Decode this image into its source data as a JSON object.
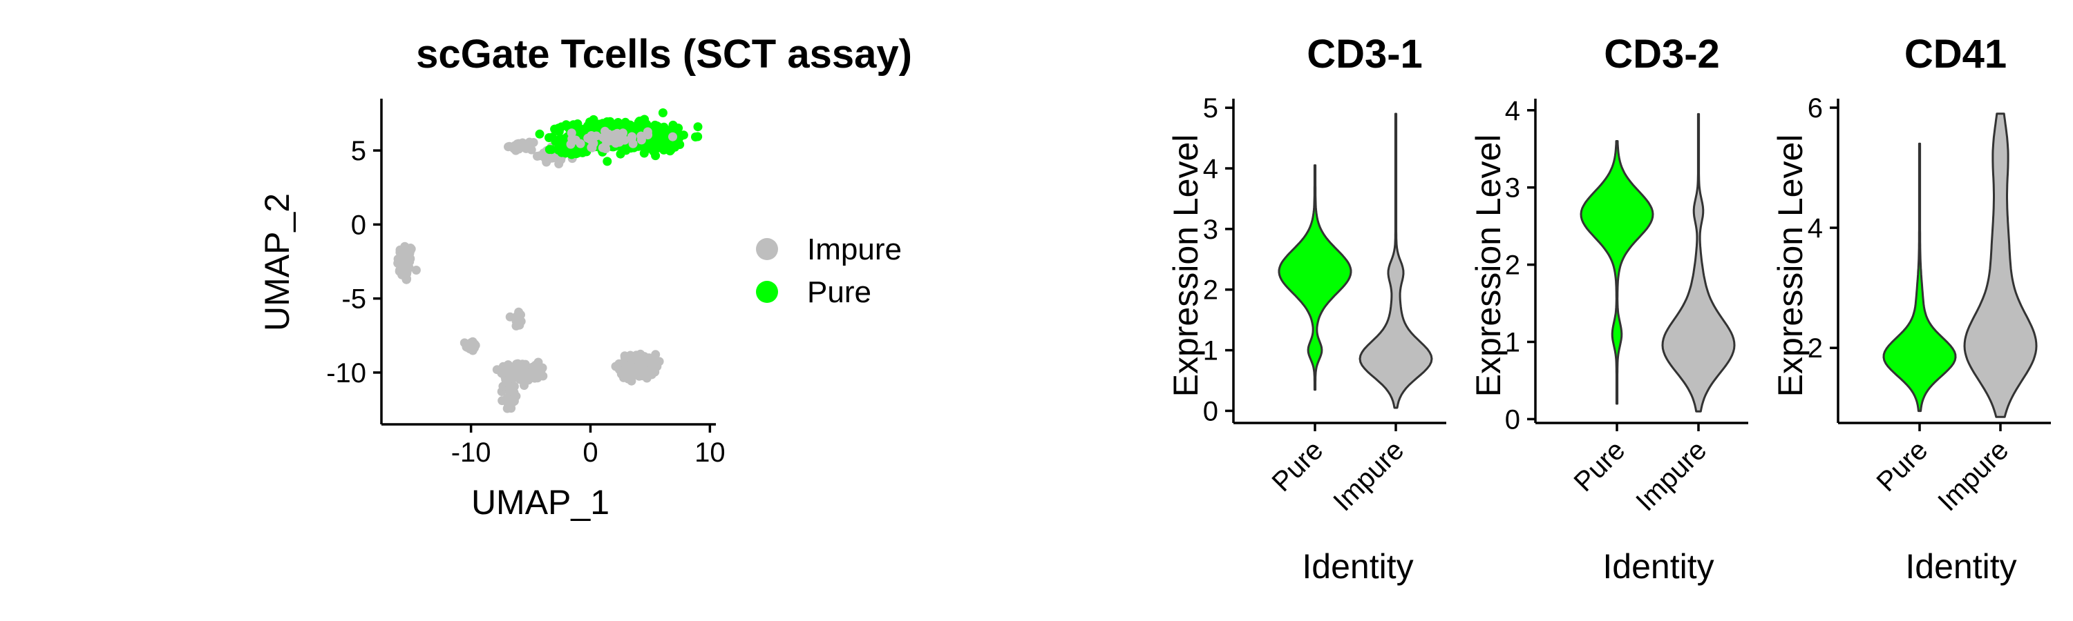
{
  "colors": {
    "Pure": "#00ff00",
    "Impure": "#bebebe",
    "outline": "#333333",
    "axis": "#000000"
  },
  "chart_data": [
    {
      "type": "scatter",
      "title": "scGate Tcells (SCT assay)",
      "xlabel": "UMAP_1",
      "ylabel": "UMAP_2",
      "xlim": [
        -17.5,
        10.5
      ],
      "ylim": [
        -13.5,
        8.5
      ],
      "xticks": [
        -10,
        0,
        10
      ],
      "xtick_labels": [
        "-10",
        "0",
        "10"
      ],
      "yticks": [
        5,
        0,
        -5,
        -10
      ],
      "ytick_labels": [
        "5",
        "0",
        "-5",
        "-10"
      ],
      "grid": false,
      "legend": {
        "position": "right",
        "entries": [
          "Impure",
          "Pure"
        ]
      },
      "clusters": [
        {
          "group": "Impure",
          "center": [
            -15.5,
            -2.6
          ],
          "spread": [
            0.55,
            1.1
          ],
          "n": 70
        },
        {
          "group": "Impure",
          "center": [
            -10.0,
            -8.2
          ],
          "spread": [
            0.35,
            0.3
          ],
          "n": 25
        },
        {
          "group": "Impure",
          "center": [
            -6.0,
            -6.4
          ],
          "spread": [
            0.3,
            0.55
          ],
          "n": 20
        },
        {
          "group": "Impure",
          "center": [
            -6.4,
            -9.9
          ],
          "spread": [
            1.1,
            0.55
          ],
          "n": 70
        },
        {
          "group": "Impure",
          "center": [
            -4.8,
            -10.1
          ],
          "spread": [
            0.8,
            0.55
          ],
          "n": 45
        },
        {
          "group": "Impure",
          "center": [
            -6.8,
            -11.5
          ],
          "spread": [
            0.4,
            0.8
          ],
          "n": 30
        },
        {
          "group": "Impure",
          "center": [
            4.0,
            -9.6
          ],
          "spread": [
            1.25,
            0.7
          ],
          "n": 120
        },
        {
          "group": "Impure",
          "center": [
            -3.2,
            4.7
          ],
          "spread": [
            1.0,
            0.35
          ],
          "n": 45
        },
        {
          "group": "Impure",
          "center": [
            -5.8,
            5.3
          ],
          "spread": [
            0.8,
            0.2
          ],
          "n": 20
        },
        {
          "group": "Pure",
          "center": [
            2.5,
            6.0
          ],
          "spread": [
            3.6,
            0.75
          ],
          "n": 600
        },
        {
          "group": "Pure",
          "center": [
            -1.5,
            5.1
          ],
          "spread": [
            1.2,
            0.35
          ],
          "n": 60
        },
        {
          "group": "Pure",
          "center": [
            6.5,
            5.8
          ],
          "spread": [
            1.0,
            0.6
          ],
          "n": 100
        },
        {
          "group": "Impure",
          "center": [
            1.5,
            5.8
          ],
          "spread": [
            2.8,
            0.5
          ],
          "n": 45
        }
      ]
    },
    {
      "type": "violin",
      "title": "CD3-1",
      "xlabel": "Identity",
      "ylabel": "Expression Level",
      "categories": [
        "Pure",
        "Impure"
      ],
      "ylim": [
        -0.2,
        5.15
      ],
      "yticks": [
        0,
        1,
        2,
        3,
        4,
        5
      ],
      "ytick_labels": [
        "0",
        "1",
        "2",
        "3",
        "4",
        "5"
      ],
      "violins": [
        {
          "group": "Pure",
          "min": 0.35,
          "max": 4.05,
          "modes": [
            {
              "y": 2.3,
              "sd": 0.36,
              "w": 1.0
            },
            {
              "y": 1.0,
              "sd": 0.15,
              "w": 0.18
            }
          ]
        },
        {
          "group": "Impure",
          "min": 0.05,
          "max": 4.9,
          "modes": [
            {
              "y": 0.85,
              "sd": 0.3,
              "w": 1.0
            },
            {
              "y": 2.3,
              "sd": 0.18,
              "w": 0.18
            },
            {
              "y": 1.6,
              "sd": 0.4,
              "w": 0.12
            }
          ]
        }
      ]
    },
    {
      "type": "violin",
      "title": "CD3-2",
      "xlabel": "Identity",
      "ylabel": "Expression Level",
      "categories": [
        "Pure",
        "Impure"
      ],
      "ylim": [
        -0.05,
        4.15
      ],
      "yticks": [
        0,
        1,
        2,
        3,
        4
      ],
      "ytick_labels": [
        "0",
        "1",
        "2",
        "3",
        "4"
      ],
      "violins": [
        {
          "group": "Pure",
          "min": 0.2,
          "max": 3.6,
          "modes": [
            {
              "y": 2.65,
              "sd": 0.3,
              "w": 1.0
            },
            {
              "y": 1.1,
              "sd": 0.15,
              "w": 0.12
            }
          ]
        },
        {
          "group": "Impure",
          "min": 0.1,
          "max": 3.95,
          "modes": [
            {
              "y": 0.95,
              "sd": 0.35,
              "w": 1.0
            },
            {
              "y": 2.7,
              "sd": 0.15,
              "w": 0.12
            },
            {
              "y": 1.7,
              "sd": 0.35,
              "w": 0.12
            }
          ]
        }
      ]
    },
    {
      "type": "violin",
      "title": "CD41",
      "xlabel": "Identity",
      "ylabel": "Expression Level",
      "categories": [
        "Pure",
        "Impure"
      ],
      "ylim": [
        0.75,
        6.15
      ],
      "yticks": [
        2,
        4,
        6
      ],
      "ytick_labels": [
        "2",
        "4",
        "6"
      ],
      "violins": [
        {
          "group": "Pure",
          "min": 0.95,
          "max": 5.4,
          "modes": [
            {
              "y": 1.85,
              "sd": 0.32,
              "w": 1.0
            },
            {
              "y": 2.7,
              "sd": 0.4,
              "w": 0.08
            }
          ]
        },
        {
          "group": "Impure",
          "min": 0.85,
          "max": 5.9,
          "modes": [
            {
              "y": 2.0,
              "sd": 0.55,
              "w": 1.0
            },
            {
              "y": 3.5,
              "sd": 0.9,
              "w": 0.25
            },
            {
              "y": 5.3,
              "sd": 0.5,
              "w": 0.18
            }
          ]
        }
      ]
    }
  ]
}
